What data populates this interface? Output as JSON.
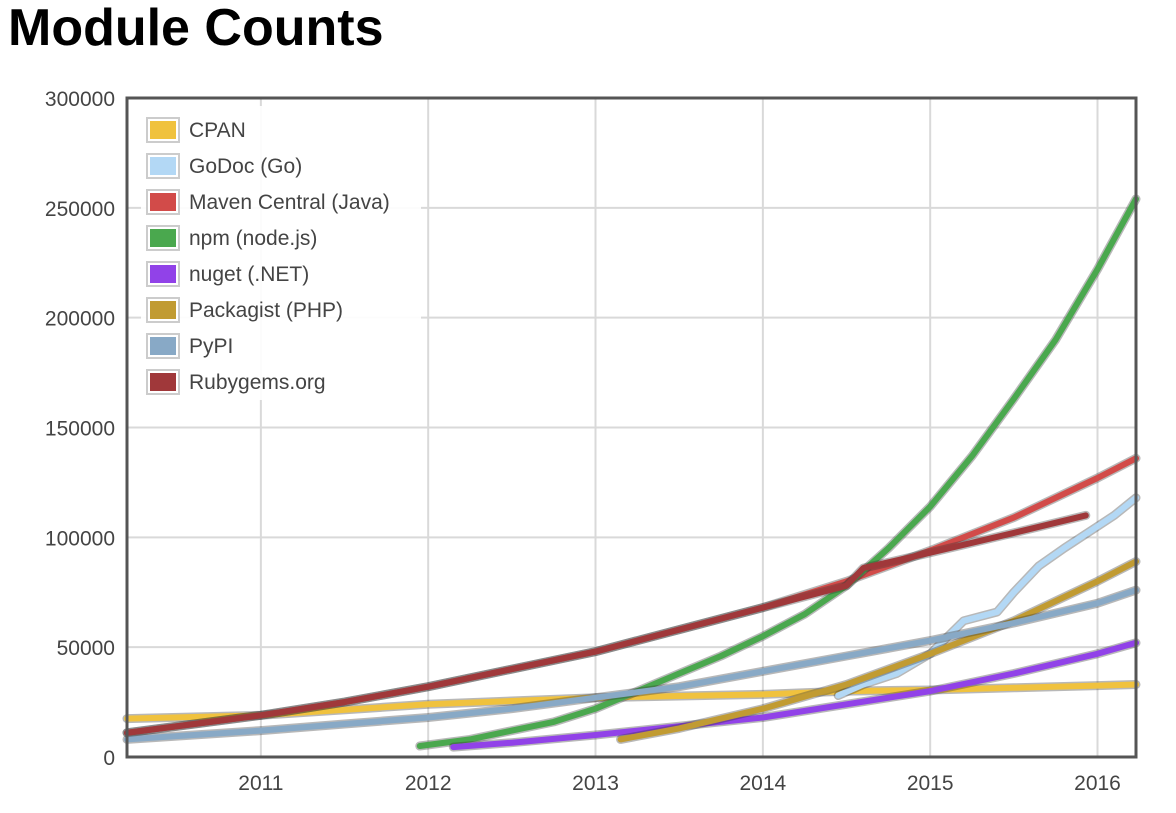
{
  "title": "Module Counts",
  "chart_data": {
    "type": "line",
    "title": "Module Counts",
    "xlabel": "",
    "ylabel": "",
    "xlim": [
      2010.2,
      2016.23
    ],
    "ylim": [
      0,
      300000
    ],
    "x_ticks": [
      {
        "value": 2011,
        "label": "2011"
      },
      {
        "value": 2012,
        "label": "2012"
      },
      {
        "value": 2013,
        "label": "2013"
      },
      {
        "value": 2014,
        "label": "2014"
      },
      {
        "value": 2015,
        "label": "2015"
      },
      {
        "value": 2016,
        "label": "2016"
      }
    ],
    "y_ticks": [
      {
        "value": 0,
        "label": "0"
      },
      {
        "value": 50000,
        "label": "50000"
      },
      {
        "value": 100000,
        "label": "100000"
      },
      {
        "value": 150000,
        "label": "150000"
      },
      {
        "value": 200000,
        "label": "200000"
      },
      {
        "value": 250000,
        "label": "250000"
      },
      {
        "value": 300000,
        "label": "300000"
      }
    ],
    "grid": true,
    "legend_position": "top-left",
    "series": [
      {
        "name": "CPAN",
        "color": "#f0c23e",
        "x": [
          2010.2,
          2011.0,
          2012.0,
          2013.0,
          2014.0,
          2014.5,
          2015.0,
          2015.5,
          2016.0,
          2016.23
        ],
        "y": [
          17500,
          19000,
          24000,
          27000,
          28500,
          30000,
          30500,
          31500,
          32500,
          33000
        ]
      },
      {
        "name": "GoDoc (Go)",
        "color": "#b3d8f5",
        "x": [
          2014.45,
          2014.6,
          2014.8,
          2015.0,
          2015.2,
          2015.4,
          2015.5,
          2015.65,
          2015.8,
          2016.0,
          2016.1,
          2016.23
        ],
        "y": [
          28000,
          33000,
          38000,
          47000,
          62000,
          66000,
          75000,
          87000,
          95000,
          105000,
          110000,
          118000
        ]
      },
      {
        "name": "Maven Central (Java)",
        "color": "#d24b49",
        "x": [
          2010.2,
          2011.0,
          2011.5,
          2012.0,
          2012.5,
          2013.0,
          2013.5,
          2014.0,
          2014.5,
          2015.0,
          2015.5,
          2016.0,
          2016.23
        ],
        "y": [
          11000,
          19000,
          25000,
          32000,
          40000,
          48000,
          58000,
          68000,
          80000,
          94000,
          109000,
          127000,
          136000
        ]
      },
      {
        "name": "npm (node.js)",
        "color": "#4aa84e",
        "x": [
          2011.95,
          2012.25,
          2012.5,
          2012.75,
          2013.0,
          2013.25,
          2013.5,
          2013.75,
          2014.0,
          2014.25,
          2014.5,
          2014.75,
          2015.0,
          2015.25,
          2015.5,
          2015.75,
          2016.0,
          2016.23
        ],
        "y": [
          5000,
          8000,
          12000,
          16000,
          22000,
          30000,
          38000,
          46000,
          55000,
          65000,
          78000,
          95000,
          114000,
          137000,
          163000,
          190000,
          222000,
          254000
        ]
      },
      {
        "name": "nuget (.NET)",
        "color": "#9142e8",
        "x": [
          2012.15,
          2012.5,
          2013.0,
          2013.5,
          2014.0,
          2014.5,
          2015.0,
          2015.5,
          2016.0,
          2016.23
        ],
        "y": [
          4500,
          6500,
          10000,
          14000,
          18000,
          24000,
          30000,
          38000,
          47000,
          52000
        ]
      },
      {
        "name": "Packagist (PHP)",
        "color": "#c19b32",
        "x": [
          2013.15,
          2013.5,
          2014.0,
          2014.5,
          2015.0,
          2015.5,
          2016.0,
          2016.23
        ],
        "y": [
          8000,
          13000,
          22000,
          33000,
          47000,
          62000,
          80000,
          89000
        ]
      },
      {
        "name": "PyPI",
        "color": "#88a9c6",
        "x": [
          2010.2,
          2011.0,
          2011.5,
          2012.0,
          2012.5,
          2013.0,
          2013.5,
          2014.0,
          2014.5,
          2015.0,
          2015.5,
          2016.0,
          2016.23
        ],
        "y": [
          8000,
          12000,
          15000,
          18000,
          22000,
          27000,
          32000,
          39000,
          46000,
          53000,
          61000,
          70000,
          76000
        ]
      },
      {
        "name": "Rubygems.org",
        "color": "#a0383a",
        "x": [
          2010.2,
          2011.0,
          2011.5,
          2012.0,
          2012.5,
          2013.0,
          2013.5,
          2014.0,
          2014.5,
          2014.6,
          2015.0,
          2015.5,
          2015.93
        ],
        "y": [
          11000,
          19000,
          25000,
          32000,
          40000,
          48000,
          58000,
          68000,
          78000,
          86000,
          93000,
          102000,
          110000
        ]
      }
    ]
  }
}
